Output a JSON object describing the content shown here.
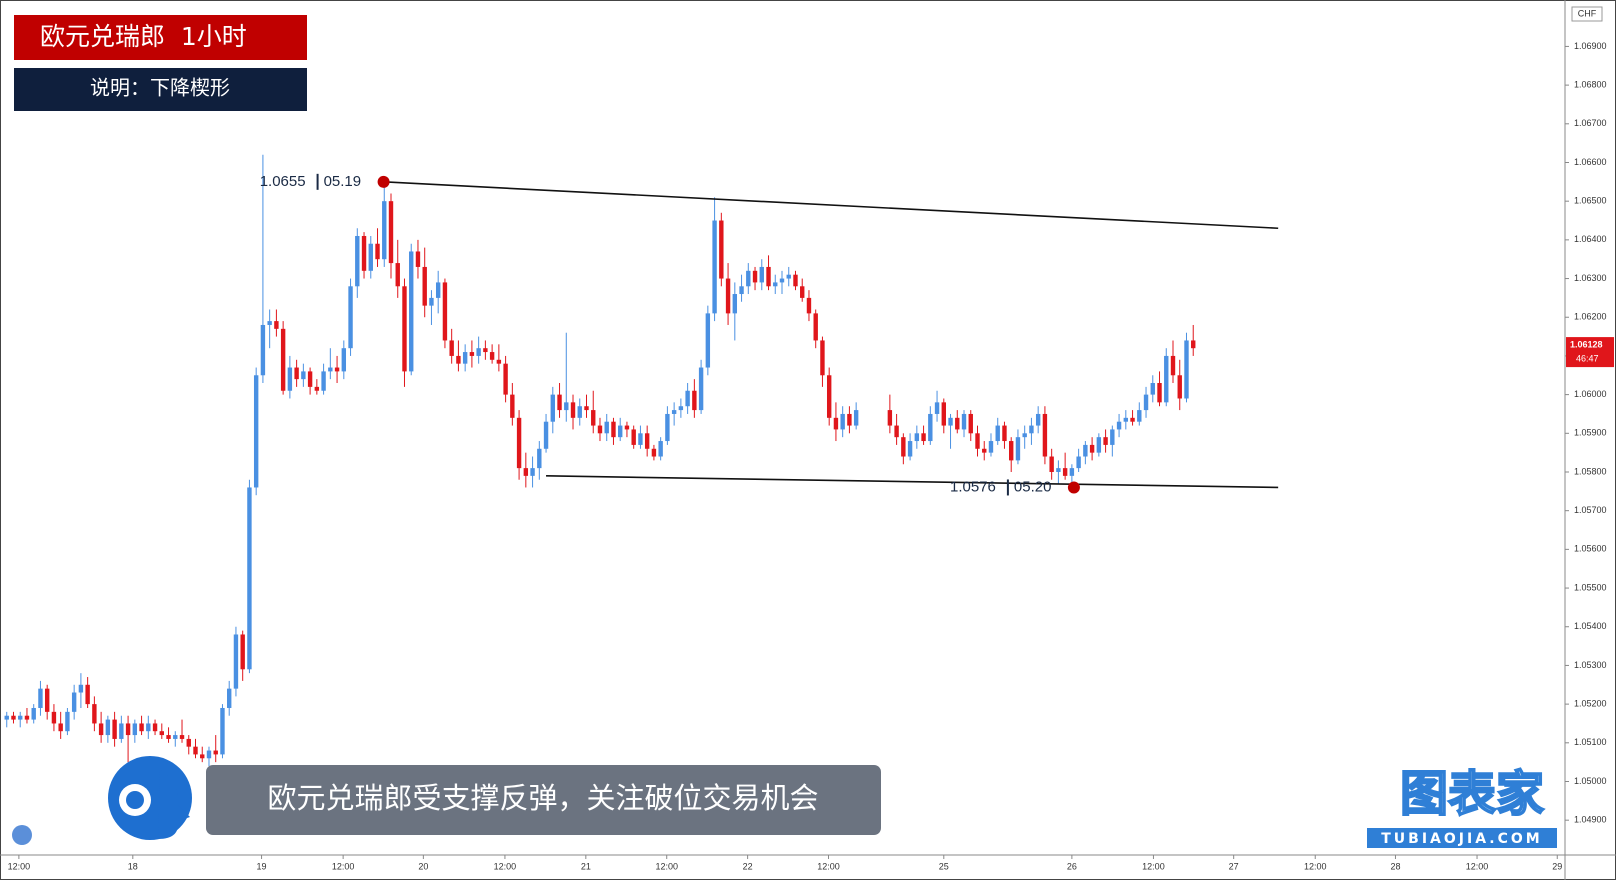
{
  "chart_data": {
    "type": "candlestick",
    "title": "欧元兑瑞郎  1小时",
    "subtitle": "说明：下降楔形",
    "caption": "欧元兑瑞郎受支撑反弹，关注破位交易机会",
    "watermark": {
      "text": "图表家",
      "url": "TUBIAOJIA.COM"
    },
    "currency": "CHF",
    "last_price": 1.06128,
    "countdown": "46:47",
    "up_color": "#4a90e2",
    "down_color": "#e0161b",
    "line_color": "#111111",
    "marker_color": "#c00000",
    "xlim": [
      0,
      232
    ],
    "ylim": [
      1.0481,
      1.0702
    ],
    "xticks": [
      {
        "value": 2.8,
        "label": "12:00"
      },
      {
        "value": 19.7,
        "label": "18"
      },
      {
        "value": 38.8,
        "label": "19"
      },
      {
        "value": 50.9,
        "label": "12:00"
      },
      {
        "value": 62.8,
        "label": "20"
      },
      {
        "value": 74.9,
        "label": "12:00"
      },
      {
        "value": 86.9,
        "label": "21"
      },
      {
        "value": 98.9,
        "label": "12:00"
      },
      {
        "value": 110.9,
        "label": "22"
      },
      {
        "value": 122.9,
        "label": "12:00"
      },
      {
        "value": 140,
        "label": "25"
      },
      {
        "value": 159,
        "label": "26"
      },
      {
        "value": 171.1,
        "label": "12:00"
      },
      {
        "value": 183,
        "label": "27"
      },
      {
        "value": 195.1,
        "label": "12:00"
      },
      {
        "value": 207,
        "label": "28"
      },
      {
        "value": 219.1,
        "label": "12:00"
      },
      {
        "value": 231,
        "label": "29"
      }
    ],
    "yticks": [
      {
        "value": 1.049,
        "label": "1.04900"
      },
      {
        "value": 1.05,
        "label": "1.05000"
      },
      {
        "value": 1.051,
        "label": "1.05100"
      },
      {
        "value": 1.052,
        "label": "1.05200"
      },
      {
        "value": 1.053,
        "label": "1.05300"
      },
      {
        "value": 1.054,
        "label": "1.05400"
      },
      {
        "value": 1.055,
        "label": "1.05500"
      },
      {
        "value": 1.056,
        "label": "1.05600"
      },
      {
        "value": 1.057,
        "label": "1.05700"
      },
      {
        "value": 1.058,
        "label": "1.05800"
      },
      {
        "value": 1.059,
        "label": "1.05900"
      },
      {
        "value": 1.06,
        "label": "1.06000"
      },
      {
        "value": 1.061,
        "label": "1.06100"
      },
      {
        "value": 1.062,
        "label": "1.06200"
      },
      {
        "value": 1.063,
        "label": "1.06300"
      },
      {
        "value": 1.064,
        "label": "1.06400"
      },
      {
        "value": 1.065,
        "label": "1.06500"
      },
      {
        "value": 1.066,
        "label": "1.06600"
      },
      {
        "value": 1.067,
        "label": "1.06700"
      },
      {
        "value": 1.068,
        "label": "1.06800"
      },
      {
        "value": 1.069,
        "label": "1.06900"
      }
    ],
    "x": [
      1,
      2,
      3,
      4,
      5,
      6,
      7,
      8,
      9,
      10,
      11,
      12,
      13,
      14,
      15,
      16,
      17,
      18,
      19,
      20,
      21,
      22,
      23,
      24,
      25,
      26,
      27,
      28,
      29,
      30,
      31,
      32,
      33,
      34,
      35,
      36,
      37,
      38,
      39,
      40,
      41,
      42,
      43,
      44,
      45,
      46,
      47,
      48,
      49,
      50,
      51,
      52,
      53,
      54,
      55,
      56,
      57,
      58,
      59,
      60,
      61,
      62,
      63,
      64,
      65,
      66,
      67,
      68,
      69,
      70,
      71,
      72,
      73,
      74,
      75,
      76,
      77,
      78,
      79,
      80,
      81,
      82,
      83,
      84,
      85,
      86,
      87,
      88,
      89,
      90,
      91,
      92,
      93,
      94,
      95,
      96,
      97,
      98,
      99,
      100,
      101,
      102,
      103,
      104,
      105,
      106,
      107,
      108,
      109,
      110,
      111,
      112,
      113,
      114,
      115,
      116,
      117,
      118,
      119,
      120,
      121,
      122,
      123,
      124,
      125,
      126,
      127,
      132,
      133,
      134,
      135,
      136,
      137,
      138,
      139,
      140,
      141,
      142,
      143,
      144,
      145,
      146,
      147,
      148,
      149,
      150,
      151,
      152,
      153,
      154,
      155,
      156,
      157,
      158,
      159,
      160,
      161,
      162,
      163,
      164,
      165,
      166,
      167,
      168,
      169,
      170,
      171,
      172,
      173,
      174,
      175,
      176,
      177
    ],
    "ohlc": [
      [
        1.0516,
        1.0518,
        1.0514,
        1.0517
      ],
      [
        1.0517,
        1.0518,
        1.0515,
        1.0516
      ],
      [
        1.0516,
        1.0518,
        1.0514,
        1.0517
      ],
      [
        1.0517,
        1.0519,
        1.0515,
        1.0516
      ],
      [
        1.0516,
        1.052,
        1.0515,
        1.0519
      ],
      [
        1.0519,
        1.0526,
        1.0517,
        1.0524
      ],
      [
        1.0524,
        1.0525,
        1.0516,
        1.0518
      ],
      [
        1.0518,
        1.052,
        1.0513,
        1.0515
      ],
      [
        1.0515,
        1.0518,
        1.0511,
        1.0513
      ],
      [
        1.0513,
        1.0519,
        1.0512,
        1.0518
      ],
      [
        1.0518,
        1.0525,
        1.0516,
        1.0523
      ],
      [
        1.0523,
        1.0528,
        1.0519,
        1.0525
      ],
      [
        1.0525,
        1.0527,
        1.0519,
        1.052
      ],
      [
        1.052,
        1.0522,
        1.0513,
        1.0515
      ],
      [
        1.0515,
        1.0518,
        1.051,
        1.0512
      ],
      [
        1.0512,
        1.0517,
        1.051,
        1.0516
      ],
      [
        1.0516,
        1.0518,
        1.0509,
        1.0511
      ],
      [
        1.0511,
        1.0517,
        1.051,
        1.0515
      ],
      [
        1.0515,
        1.0517,
        1.0505,
        1.0512
      ],
      [
        1.0512,
        1.0516,
        1.051,
        1.0515
      ],
      [
        1.0515,
        1.0517,
        1.0512,
        1.0513
      ],
      [
        1.0513,
        1.0517,
        1.0511,
        1.0515
      ],
      [
        1.0515,
        1.0516,
        1.0512,
        1.0513
      ],
      [
        1.0513,
        1.0515,
        1.0511,
        1.0512
      ],
      [
        1.0512,
        1.0514,
        1.051,
        1.0511
      ],
      [
        1.0511,
        1.0513,
        1.0509,
        1.0512
      ],
      [
        1.0512,
        1.0516,
        1.051,
        1.0511
      ],
      [
        1.0511,
        1.0512,
        1.0507,
        1.0509
      ],
      [
        1.0509,
        1.0511,
        1.0506,
        1.0507
      ],
      [
        1.0507,
        1.0509,
        1.0505,
        1.0506
      ],
      [
        1.0506,
        1.0509,
        1.0504,
        1.0508
      ],
      [
        1.0508,
        1.0512,
        1.0505,
        1.0507
      ],
      [
        1.0507,
        1.052,
        1.0506,
        1.0519
      ],
      [
        1.0519,
        1.0526,
        1.0517,
        1.0524
      ],
      [
        1.0524,
        1.054,
        1.0522,
        1.0538
      ],
      [
        1.0538,
        1.0539,
        1.0526,
        1.0529
      ],
      [
        1.0529,
        1.0578,
        1.0528,
        1.0576
      ],
      [
        1.0576,
        1.0607,
        1.0574,
        1.0605
      ],
      [
        1.0605,
        1.0662,
        1.0603,
        1.0618
      ],
      [
        1.0618,
        1.0622,
        1.0612,
        1.0619
      ],
      [
        1.0619,
        1.0622,
        1.0615,
        1.0617
      ],
      [
        1.0617,
        1.0619,
        1.06,
        1.0601
      ],
      [
        1.0601,
        1.061,
        1.0599,
        1.0607
      ],
      [
        1.0607,
        1.0609,
        1.0602,
        1.0604
      ],
      [
        1.0604,
        1.0608,
        1.0602,
        1.0606
      ],
      [
        1.0606,
        1.0607,
        1.06,
        1.0602
      ],
      [
        1.0602,
        1.0604,
        1.06,
        1.0601
      ],
      [
        1.0601,
        1.0608,
        1.06,
        1.0606
      ],
      [
        1.0606,
        1.0612,
        1.0604,
        1.0607
      ],
      [
        1.0607,
        1.061,
        1.0603,
        1.0606
      ],
      [
        1.0606,
        1.0614,
        1.0604,
        1.0612
      ],
      [
        1.0612,
        1.063,
        1.061,
        1.0628
      ],
      [
        1.0628,
        1.0643,
        1.0625,
        1.0641
      ],
      [
        1.0641,
        1.0642,
        1.063,
        1.0632
      ],
      [
        1.0632,
        1.0641,
        1.063,
        1.0639
      ],
      [
        1.0639,
        1.0643,
        1.0633,
        1.0635
      ],
      [
        1.0635,
        1.0655,
        1.0633,
        1.065
      ],
      [
        1.065,
        1.0652,
        1.063,
        1.0634
      ],
      [
        1.0634,
        1.064,
        1.0625,
        1.0628
      ],
      [
        1.0628,
        1.063,
        1.0602,
        1.0606
      ],
      [
        1.0606,
        1.0639,
        1.0605,
        1.0637
      ],
      [
        1.0637,
        1.064,
        1.063,
        1.0633
      ],
      [
        1.0633,
        1.0638,
        1.062,
        1.0623
      ],
      [
        1.0623,
        1.0627,
        1.0618,
        1.0625
      ],
      [
        1.0625,
        1.0632,
        1.0621,
        1.0629
      ],
      [
        1.0629,
        1.063,
        1.0612,
        1.0614
      ],
      [
        1.0614,
        1.0617,
        1.0608,
        1.061
      ],
      [
        1.061,
        1.0614,
        1.0606,
        1.0608
      ],
      [
        1.0608,
        1.0613,
        1.0606,
        1.0611
      ],
      [
        1.0611,
        1.0614,
        1.0607,
        1.061
      ],
      [
        1.061,
        1.0615,
        1.0608,
        1.0612
      ],
      [
        1.0612,
        1.0614,
        1.0609,
        1.0611
      ],
      [
        1.0611,
        1.0613,
        1.0608,
        1.0609
      ],
      [
        1.0609,
        1.0613,
        1.0606,
        1.0608
      ],
      [
        1.0608,
        1.061,
        1.0598,
        1.06
      ],
      [
        1.06,
        1.0603,
        1.0592,
        1.0594
      ],
      [
        1.0594,
        1.0596,
        1.0578,
        1.0581
      ],
      [
        1.0581,
        1.0585,
        1.0576,
        1.0579
      ],
      [
        1.0579,
        1.0584,
        1.0576,
        1.0581
      ],
      [
        1.0581,
        1.0588,
        1.0578,
        1.0586
      ],
      [
        1.0586,
        1.0595,
        1.0585,
        1.0593
      ],
      [
        1.0593,
        1.0602,
        1.059,
        1.06
      ],
      [
        1.06,
        1.0603,
        1.0594,
        1.0596
      ],
      [
        1.0596,
        1.0616,
        1.0593,
        1.0598
      ],
      [
        1.0598,
        1.06,
        1.0591,
        1.0594
      ],
      [
        1.0594,
        1.0599,
        1.0592,
        1.0597
      ],
      [
        1.0597,
        1.06,
        1.0594,
        1.0596
      ],
      [
        1.0596,
        1.0601,
        1.059,
        1.0592
      ],
      [
        1.0592,
        1.0594,
        1.0588,
        1.059
      ],
      [
        1.059,
        1.0595,
        1.0588,
        1.0593
      ],
      [
        1.0593,
        1.0594,
        1.0587,
        1.0589
      ],
      [
        1.0589,
        1.0594,
        1.0588,
        1.0592
      ],
      [
        1.0592,
        1.0593,
        1.0589,
        1.0591
      ],
      [
        1.0591,
        1.0592,
        1.0586,
        1.0587
      ],
      [
        1.0587,
        1.0592,
        1.0586,
        1.059
      ],
      [
        1.059,
        1.0592,
        1.0584,
        1.0586
      ],
      [
        1.0586,
        1.0587,
        1.0583,
        1.0584
      ],
      [
        1.0584,
        1.0589,
        1.0583,
        1.0588
      ],
      [
        1.0588,
        1.0597,
        1.0587,
        1.0595
      ],
      [
        1.0595,
        1.0598,
        1.0592,
        1.0596
      ],
      [
        1.0596,
        1.0599,
        1.0594,
        1.0597
      ],
      [
        1.0597,
        1.0603,
        1.0595,
        1.0601
      ],
      [
        1.0601,
        1.0604,
        1.0594,
        1.0596
      ],
      [
        1.0596,
        1.0609,
        1.0595,
        1.0607
      ],
      [
        1.0607,
        1.0623,
        1.0605,
        1.0621
      ],
      [
        1.0621,
        1.0651,
        1.0619,
        1.0645
      ],
      [
        1.0645,
        1.0647,
        1.0628,
        1.063
      ],
      [
        1.063,
        1.0634,
        1.0618,
        1.0621
      ],
      [
        1.0621,
        1.0629,
        1.0614,
        1.0626
      ],
      [
        1.0626,
        1.0631,
        1.0624,
        1.0628
      ],
      [
        1.0628,
        1.0634,
        1.0626,
        1.0632
      ],
      [
        1.0632,
        1.0633,
        1.0627,
        1.0629
      ],
      [
        1.0629,
        1.0635,
        1.0627,
        1.0633
      ],
      [
        1.0633,
        1.0636,
        1.0627,
        1.0628
      ],
      [
        1.0628,
        1.0631,
        1.0626,
        1.0629
      ],
      [
        1.0629,
        1.0632,
        1.0626,
        1.063
      ],
      [
        1.063,
        1.0633,
        1.0628,
        1.0631
      ],
      [
        1.0631,
        1.0632,
        1.0627,
        1.0628
      ],
      [
        1.0628,
        1.063,
        1.0624,
        1.0625
      ],
      [
        1.0625,
        1.0627,
        1.0619,
        1.0621
      ],
      [
        1.0621,
        1.0622,
        1.0612,
        1.0614
      ],
      [
        1.0614,
        1.0615,
        1.0602,
        1.0605
      ],
      [
        1.0605,
        1.0607,
        1.0592,
        1.0594
      ],
      [
        1.0594,
        1.0598,
        1.0588,
        1.0591
      ],
      [
        1.0591,
        1.0597,
        1.0589,
        1.0595
      ],
      [
        1.0595,
        1.0597,
        1.059,
        1.0592
      ],
      [
        1.0592,
        1.0598,
        1.0591,
        1.0596
      ],
      [
        1.0596,
        1.06,
        1.059,
        1.0592
      ],
      [
        1.0592,
        1.0595,
        1.0587,
        1.0589
      ],
      [
        1.0589,
        1.059,
        1.0582,
        1.0584
      ],
      [
        1.0584,
        1.059,
        1.0583,
        1.0588
      ],
      [
        1.0588,
        1.0592,
        1.0586,
        1.059
      ],
      [
        1.059,
        1.0592,
        1.0587,
        1.0588
      ],
      [
        1.0588,
        1.0597,
        1.0587,
        1.0595
      ],
      [
        1.0595,
        1.0601,
        1.0593,
        1.0598
      ],
      [
        1.0598,
        1.0599,
        1.059,
        1.0592
      ],
      [
        1.0592,
        1.0595,
        1.0586,
        1.0594
      ],
      [
        1.0594,
        1.0596,
        1.059,
        1.0591
      ],
      [
        1.0591,
        1.0596,
        1.0589,
        1.0595
      ],
      [
        1.0595,
        1.0596,
        1.0588,
        1.059
      ],
      [
        1.059,
        1.0592,
        1.0584,
        1.0586
      ],
      [
        1.0586,
        1.0588,
        1.0583,
        1.0585
      ],
      [
        1.0585,
        1.059,
        1.0584,
        1.0588
      ],
      [
        1.0588,
        1.0594,
        1.0587,
        1.0592
      ],
      [
        1.0592,
        1.0593,
        1.0586,
        1.0588
      ],
      [
        1.0588,
        1.0589,
        1.058,
        1.0583
      ],
      [
        1.0583,
        1.0591,
        1.0582,
        1.0589
      ],
      [
        1.0589,
        1.0592,
        1.0586,
        1.059
      ],
      [
        1.059,
        1.0594,
        1.0587,
        1.0592
      ],
      [
        1.0592,
        1.0597,
        1.059,
        1.0595
      ],
      [
        1.0595,
        1.0597,
        1.0582,
        1.0584
      ],
      [
        1.0584,
        1.0586,
        1.0578,
        1.058
      ],
      [
        1.058,
        1.0583,
        1.0577,
        1.0581
      ],
      [
        1.0581,
        1.0585,
        1.0578,
        1.0579
      ],
      [
        1.0579,
        1.0582,
        1.0576,
        1.0581
      ],
      [
        1.0581,
        1.0586,
        1.058,
        1.0584
      ],
      [
        1.0584,
        1.0588,
        1.0582,
        1.0587
      ],
      [
        1.0587,
        1.0589,
        1.0583,
        1.0585
      ],
      [
        1.0585,
        1.059,
        1.0584,
        1.0589
      ],
      [
        1.0589,
        1.0591,
        1.0585,
        1.0587
      ],
      [
        1.0587,
        1.0592,
        1.0584,
        1.0591
      ],
      [
        1.0591,
        1.0595,
        1.0589,
        1.0593
      ],
      [
        1.0593,
        1.0596,
        1.0591,
        1.0594
      ],
      [
        1.0594,
        1.0596,
        1.0592,
        1.0593
      ],
      [
        1.0593,
        1.0598,
        1.0592,
        1.0596
      ],
      [
        1.0596,
        1.0602,
        1.0594,
        1.06
      ],
      [
        1.06,
        1.0605,
        1.0598,
        1.0603
      ],
      [
        1.0603,
        1.0606,
        1.0597,
        1.0598
      ],
      [
        1.0598,
        1.0612,
        1.0597,
        1.061
      ],
      [
        1.061,
        1.0614,
        1.0603,
        1.0605
      ],
      [
        1.0605,
        1.0609,
        1.0596,
        1.0599
      ],
      [
        1.0599,
        1.0616,
        1.0598,
        1.0614
      ],
      [
        1.0614,
        1.0618,
        1.061,
        1.0612
      ]
    ],
    "trendlines": [
      {
        "x": [
          56.9,
          189.6
        ],
        "y": [
          1.0655,
          1.0643
        ]
      },
      {
        "x": [
          81,
          189.6
        ],
        "y": [
          1.0579,
          1.0576
        ]
      }
    ],
    "annotations": [
      {
        "x": 56.9,
        "y": 1.0655,
        "date": "05.19"
      },
      {
        "x": 159.3,
        "y": 1.0576,
        "date": "05.20"
      }
    ]
  }
}
